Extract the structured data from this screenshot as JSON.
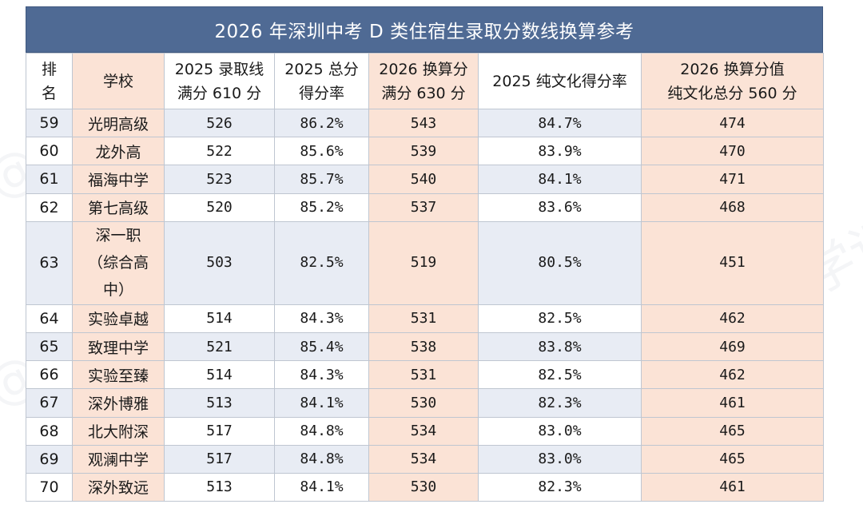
{
  "title": "2026 年深圳中考 D 类住宿生录取分数线换算参考",
  "headers": {
    "rank": "排\n名",
    "school": "学校",
    "base_2025": "2025 录取线\n满分 610 分",
    "rate_2025": "2025 总分\n得分率",
    "conv_2026": "2026 换算分\n满分 630 分",
    "pure_rate_2025": "2025 纯文化得分率",
    "pure_2026": "2026 换算分值\n纯文化总分 560 分"
  },
  "rows": [
    {
      "rank": "59",
      "school": "光明高级",
      "base": "526",
      "rate": "86.2%",
      "conv": "543",
      "pure_rate": "84.7%",
      "pure": "474"
    },
    {
      "rank": "60",
      "school": "龙外高",
      "base": "522",
      "rate": "85.6%",
      "conv": "539",
      "pure_rate": "83.9%",
      "pure": "470"
    },
    {
      "rank": "61",
      "school": "福海中学",
      "base": "523",
      "rate": "85.7%",
      "conv": "540",
      "pure_rate": "84.1%",
      "pure": "471"
    },
    {
      "rank": "62",
      "school": "第七高级",
      "base": "520",
      "rate": "85.2%",
      "conv": "537",
      "pure_rate": "83.6%",
      "pure": "468"
    },
    {
      "rank": "63",
      "school": "深一职\n（综合高\n中）",
      "base": "503",
      "rate": "82.5%",
      "conv": "519",
      "pure_rate": "80.5%",
      "pure": "451"
    },
    {
      "rank": "64",
      "school": "实验卓越",
      "base": "514",
      "rate": "84.3%",
      "conv": "531",
      "pure_rate": "82.5%",
      "pure": "462"
    },
    {
      "rank": "65",
      "school": "致理中学",
      "base": "521",
      "rate": "85.4%",
      "conv": "538",
      "pure_rate": "83.8%",
      "pure": "469"
    },
    {
      "rank": "66",
      "school": "实验至臻",
      "base": "514",
      "rate": "84.3%",
      "conv": "531",
      "pure_rate": "82.5%",
      "pure": "462"
    },
    {
      "rank": "67",
      "school": "深外博雅",
      "base": "513",
      "rate": "84.1%",
      "conv": "530",
      "pure_rate": "82.3%",
      "pure": "461"
    },
    {
      "rank": "68",
      "school": "北大附深",
      "base": "517",
      "rate": "84.8%",
      "conv": "534",
      "pure_rate": "83.0%",
      "pure": "465"
    },
    {
      "rank": "69",
      "school": "观澜中学",
      "base": "517",
      "rate": "84.8%",
      "conv": "534",
      "pure_rate": "83.0%",
      "pure": "465"
    },
    {
      "rank": "70",
      "school": "深外致远",
      "base": "513",
      "rate": "84.1%",
      "conv": "530",
      "pure_rate": "82.3%",
      "pure": "461"
    }
  ],
  "watermark": "@深学记",
  "colors": {
    "header_bar": "#4f6a94",
    "highlight": "#fbe3d6",
    "alt_row": "#e8ecf4"
  }
}
